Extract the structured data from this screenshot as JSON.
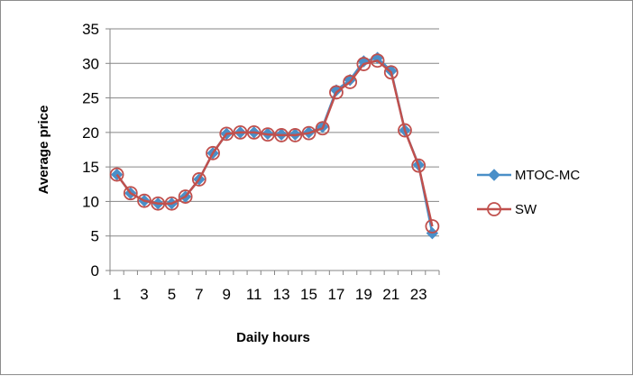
{
  "chart_data": {
    "type": "line",
    "title": "",
    "xlabel": "Daily hours",
    "ylabel": "Average price",
    "ylim": [
      0,
      35
    ],
    "yticks": [
      0,
      5,
      10,
      15,
      20,
      25,
      30,
      35
    ],
    "x": [
      1,
      2,
      3,
      4,
      5,
      6,
      7,
      8,
      9,
      10,
      11,
      12,
      13,
      14,
      15,
      16,
      17,
      18,
      19,
      20,
      21,
      22,
      23,
      24
    ],
    "x_tick_labels": [
      "1",
      "3",
      "5",
      "7",
      "9",
      "11",
      "13",
      "15",
      "17",
      "19",
      "21",
      "23"
    ],
    "grid": "horizontal",
    "legend": "right",
    "series": [
      {
        "name": "MTOC-MC",
        "color": "#4a8fc8",
        "marker": "diamond",
        "values": [
          13.9,
          11.2,
          10.1,
          9.7,
          9.7,
          10.7,
          13.2,
          17.0,
          19.8,
          20.0,
          20.0,
          19.8,
          19.7,
          19.7,
          20.0,
          20.8,
          26.1,
          27.6,
          30.3,
          30.8,
          28.9,
          20.3,
          15.3,
          5.4
        ]
      },
      {
        "name": "SW",
        "color": "#c0504d",
        "marker": "circle",
        "values": [
          13.9,
          11.2,
          10.1,
          9.7,
          9.7,
          10.7,
          13.2,
          17.0,
          19.8,
          20.0,
          20.0,
          19.7,
          19.6,
          19.6,
          19.9,
          20.6,
          25.8,
          27.3,
          29.9,
          30.4,
          28.7,
          20.3,
          15.2,
          6.4
        ]
      }
    ]
  }
}
